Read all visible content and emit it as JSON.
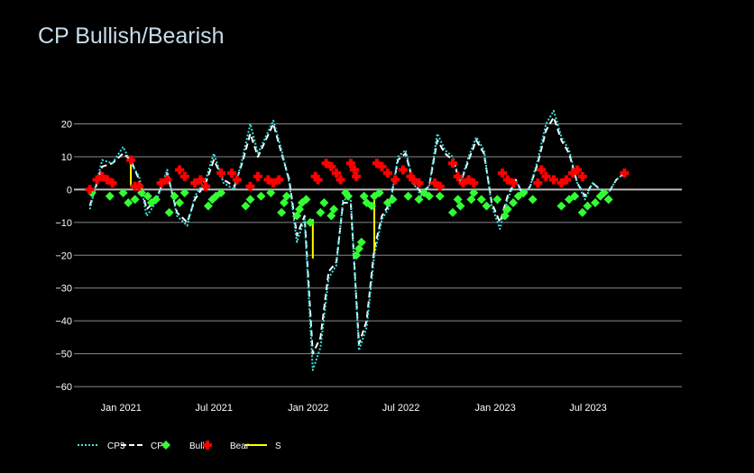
{
  "chart_data": {
    "type": "line",
    "title": "CP Bullish/Bearish",
    "xlabel": "",
    "ylabel": "",
    "x_tick_labels": [
      "Jan 2021",
      "Jul 2021",
      "Jan 2022",
      "Jul 2022",
      "Jan 2023",
      "Jul 2023"
    ],
    "x_tick_dates": [
      "2021-01-01",
      "2021-07-01",
      "2022-01-01",
      "2022-07-01",
      "2023-01-01",
      "2023-07-01"
    ],
    "x_range": [
      "2020-10-01",
      "2023-12-31"
    ],
    "ylim": [
      -63,
      27
    ],
    "y_ticks": [
      20,
      10,
      0,
      -10,
      -20,
      -30,
      -40,
      -50,
      -60
    ],
    "grid": true,
    "legend_position": "bottom-left",
    "colors": {
      "cp3": "#40e0e0",
      "cp4": "#ffffff",
      "bull": "#33ff33",
      "bear": "#ff0000",
      "s": "#ffff00"
    },
    "series": [
      {
        "name": "CP3",
        "style": "dotted",
        "x": [
          "2020-11-01",
          "2020-11-25",
          "2020-12-15",
          "2021-01-05",
          "2021-01-20",
          "2021-02-05",
          "2021-02-20",
          "2021-03-10",
          "2021-04-01",
          "2021-04-20",
          "2021-05-10",
          "2021-05-25",
          "2021-06-15",
          "2021-07-01",
          "2021-07-20",
          "2021-08-10",
          "2021-08-25",
          "2021-09-10",
          "2021-09-25",
          "2021-10-10",
          "2021-10-25",
          "2021-11-10",
          "2021-11-25",
          "2021-12-10",
          "2021-12-25",
          "2022-01-10",
          "2022-01-25",
          "2022-02-10",
          "2022-02-25",
          "2022-03-10",
          "2022-03-25",
          "2022-04-10",
          "2022-04-25",
          "2022-05-10",
          "2022-05-25",
          "2022-06-10",
          "2022-06-25",
          "2022-07-10",
          "2022-07-25",
          "2022-08-10",
          "2022-08-25",
          "2022-09-10",
          "2022-09-25",
          "2022-10-10",
          "2022-10-25",
          "2022-11-10",
          "2022-11-25",
          "2022-12-10",
          "2022-12-25",
          "2023-01-10",
          "2023-01-25",
          "2023-02-10",
          "2023-02-25",
          "2023-03-10",
          "2023-03-25",
          "2023-04-10",
          "2023-04-25",
          "2023-05-10",
          "2023-05-25",
          "2023-06-10",
          "2023-06-25",
          "2023-07-10",
          "2023-07-25",
          "2023-08-10",
          "2023-08-25",
          "2023-09-10"
        ],
        "y": [
          -6,
          9,
          8,
          13,
          8,
          4,
          -8,
          -4,
          6,
          -8,
          -11,
          -2,
          3,
          11,
          2,
          0,
          9,
          20,
          11,
          16,
          21,
          12,
          2,
          -16,
          -9,
          -55,
          -48,
          -27,
          -23,
          -3,
          -3,
          -49,
          -42,
          -20,
          -9,
          -5,
          10,
          12,
          2,
          -2,
          1,
          17,
          12,
          10,
          2,
          10,
          16,
          12,
          -5,
          -12,
          -3,
          3,
          -2,
          1,
          9,
          20,
          24,
          16,
          12,
          2,
          -3,
          2,
          0,
          -1,
          3,
          5
        ]
      },
      {
        "name": "CP4",
        "style": "dashed",
        "x": [
          "2020-11-01",
          "2020-11-25",
          "2020-12-15",
          "2021-01-05",
          "2021-01-20",
          "2021-02-05",
          "2021-02-20",
          "2021-03-10",
          "2021-04-01",
          "2021-04-20",
          "2021-05-10",
          "2021-05-25",
          "2021-06-15",
          "2021-07-01",
          "2021-07-20",
          "2021-08-10",
          "2021-08-25",
          "2021-09-10",
          "2021-09-25",
          "2021-10-10",
          "2021-10-25",
          "2021-11-10",
          "2021-11-25",
          "2021-12-10",
          "2021-12-25",
          "2022-01-10",
          "2022-01-25",
          "2022-02-10",
          "2022-02-25",
          "2022-03-10",
          "2022-03-25",
          "2022-04-10",
          "2022-04-25",
          "2022-05-10",
          "2022-05-25",
          "2022-06-10",
          "2022-06-25",
          "2022-07-10",
          "2022-07-25",
          "2022-08-10",
          "2022-08-25",
          "2022-09-10",
          "2022-09-25",
          "2022-10-10",
          "2022-10-25",
          "2022-11-10",
          "2022-11-25",
          "2022-12-10",
          "2022-12-25",
          "2023-01-10",
          "2023-01-25",
          "2023-02-10",
          "2023-02-25",
          "2023-03-10",
          "2023-03-25",
          "2023-04-10",
          "2023-04-25",
          "2023-05-10",
          "2023-05-25",
          "2023-06-10",
          "2023-06-25",
          "2023-07-10",
          "2023-07-25",
          "2023-08-10",
          "2023-08-25",
          "2023-09-10"
        ],
        "y": [
          -5,
          7,
          8,
          11,
          9,
          3,
          -6,
          -3,
          5,
          -7,
          -10,
          -3,
          2,
          9,
          3,
          1,
          8,
          17,
          10,
          15,
          20,
          11,
          3,
          -14,
          -8,
          -50,
          -45,
          -25,
          -22,
          -4,
          -4,
          -47,
          -40,
          -18,
          -8,
          -4,
          9,
          11,
          2,
          -1,
          1,
          15,
          11,
          9,
          2,
          9,
          15,
          11,
          -4,
          -10,
          -2,
          3,
          -2,
          1,
          8,
          18,
          22,
          15,
          11,
          2,
          -2,
          2,
          0,
          -1,
          3,
          5
        ]
      },
      {
        "name": "Bull",
        "marker": "diamond",
        "x": [
          "2020-11-05",
          "2020-12-10",
          "2021-01-05",
          "2021-01-15",
          "2021-01-28",
          "2021-02-10",
          "2021-02-22",
          "2021-03-01",
          "2021-03-10",
          "2021-04-05",
          "2021-04-15",
          "2021-04-25",
          "2021-05-05",
          "2021-06-20",
          "2021-06-28",
          "2021-07-05",
          "2021-07-15",
          "2021-09-01",
          "2021-09-10",
          "2021-10-01",
          "2021-10-20",
          "2021-11-10",
          "2021-11-15",
          "2021-11-20",
          "2021-12-10",
          "2021-12-15",
          "2021-12-20",
          "2021-12-28",
          "2022-01-05",
          "2022-01-25",
          "2022-02-01",
          "2022-02-15",
          "2022-02-20",
          "2022-03-15",
          "2022-03-20",
          "2022-04-05",
          "2022-04-10",
          "2022-04-15",
          "2022-04-20",
          "2022-04-25",
          "2022-05-05",
          "2022-05-10",
          "2022-05-20",
          "2022-06-05",
          "2022-06-15",
          "2022-07-15",
          "2022-08-05",
          "2022-08-15",
          "2022-08-25",
          "2022-09-15",
          "2022-10-10",
          "2022-10-20",
          "2022-10-25",
          "2022-11-15",
          "2022-11-20",
          "2022-12-05",
          "2022-12-15",
          "2023-01-05",
          "2023-01-20",
          "2023-01-25",
          "2023-02-05",
          "2023-02-15",
          "2023-02-25",
          "2023-03-15",
          "2023-05-10",
          "2023-05-25",
          "2023-06-05",
          "2023-06-20",
          "2023-06-30",
          "2023-07-15",
          "2023-07-25",
          "2023-08-01",
          "2023-08-10"
        ],
        "y": [
          -1,
          -2,
          -1,
          -4,
          -3,
          -1,
          -2,
          -4,
          -3,
          -7,
          -2,
          -4,
          -1,
          -5,
          -3,
          -2,
          -1,
          -5,
          -3,
          -2,
          -1,
          -7,
          -4,
          -2,
          -8,
          -6,
          -4,
          -3,
          -10,
          -7,
          -4,
          -8,
          -6,
          -1,
          -2,
          -20,
          -18,
          -16,
          -2,
          -4,
          -5,
          -2,
          -1,
          -4,
          -3,
          -2,
          -3,
          -1,
          -2,
          -2,
          -7,
          -3,
          -5,
          -3,
          -1,
          -3,
          -5,
          -3,
          -8,
          -6,
          -4,
          -2,
          -1,
          -3,
          -5,
          -3,
          -2,
          -7,
          -5,
          -4,
          -2,
          -1,
          -3
        ]
      },
      {
        "name": "Bear",
        "marker": "cross",
        "x": [
          "2020-11-01",
          "2020-11-15",
          "2020-11-25",
          "2020-12-05",
          "2020-12-15",
          "2021-01-20",
          "2021-01-28",
          "2021-02-05",
          "2021-03-20",
          "2021-04-01",
          "2021-04-25",
          "2021-05-05",
          "2021-05-25",
          "2021-06-05",
          "2021-06-15",
          "2021-07-15",
          "2021-08-05",
          "2021-08-15",
          "2021-09-10",
          "2021-09-25",
          "2021-10-15",
          "2021-10-25",
          "2021-11-05",
          "2022-01-15",
          "2022-01-20",
          "2022-02-05",
          "2022-02-15",
          "2022-02-25",
          "2022-03-05",
          "2022-03-25",
          "2022-04-01",
          "2022-04-05",
          "2022-05-15",
          "2022-05-25",
          "2022-06-05",
          "2022-06-20",
          "2022-07-05",
          "2022-07-20",
          "2022-07-25",
          "2022-08-05",
          "2022-09-05",
          "2022-09-15",
          "2022-10-10",
          "2022-10-20",
          "2022-10-30",
          "2022-11-10",
          "2022-11-20",
          "2023-01-15",
          "2023-01-25",
          "2023-02-05",
          "2023-03-25",
          "2023-04-01",
          "2023-04-10",
          "2023-04-25",
          "2023-05-10",
          "2023-05-20",
          "2023-06-01",
          "2023-06-10",
          "2023-06-20",
          "2023-09-10"
        ],
        "y": [
          0,
          3,
          4,
          3,
          2,
          9,
          1,
          1,
          2,
          3,
          6,
          4,
          2,
          3,
          1,
          5,
          5,
          3,
          1,
          4,
          3,
          2,
          3,
          4,
          3,
          8,
          7,
          5,
          3,
          8,
          6,
          4,
          8,
          7,
          5,
          3,
          6,
          4,
          3,
          2,
          2,
          1,
          8,
          4,
          2,
          3,
          2,
          5,
          3,
          2,
          2,
          6,
          4,
          3,
          2,
          3,
          5,
          6,
          4,
          5
        ]
      },
      {
        "name": "S",
        "style": "solid",
        "segments": [
          {
            "x": [
              "2021-01-20",
              "2021-01-20"
            ],
            "y": [
              9,
              1
            ]
          },
          {
            "x": [
              "2022-01-10",
              "2022-01-10"
            ],
            "y": [
              -9,
              -21
            ]
          },
          {
            "x": [
              "2022-05-10",
              "2022-05-10"
            ],
            "y": [
              -2,
              -19
            ]
          }
        ]
      }
    ]
  }
}
